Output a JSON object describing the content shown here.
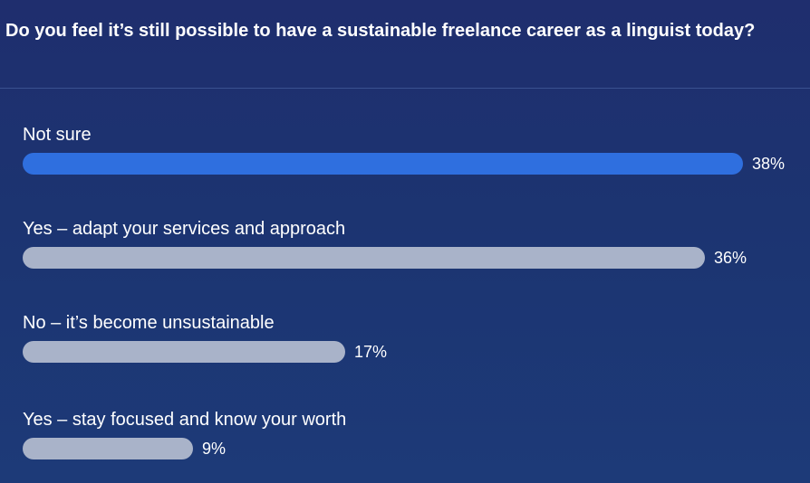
{
  "question": "Do you feel it’s still possible to have a sustainable freelance career as a linguist today?",
  "options": [
    {
      "label": "Not sure",
      "percent_label": "38%",
      "percent": 38,
      "leading": true
    },
    {
      "label": "Yes – adapt your services and approach",
      "percent_label": "36%",
      "percent": 36,
      "leading": false
    },
    {
      "label": "No – it’s become unsustainable",
      "percent_label": "17%",
      "percent": 17,
      "leading": false
    },
    {
      "label": "Yes – stay focused and know your worth",
      "percent_label": "9%",
      "percent": 9,
      "leading": false
    }
  ],
  "colors": {
    "leading_bar": "#2f6fdf",
    "other_bar": "#a9b3c9",
    "background": "#1f2e6e"
  }
}
